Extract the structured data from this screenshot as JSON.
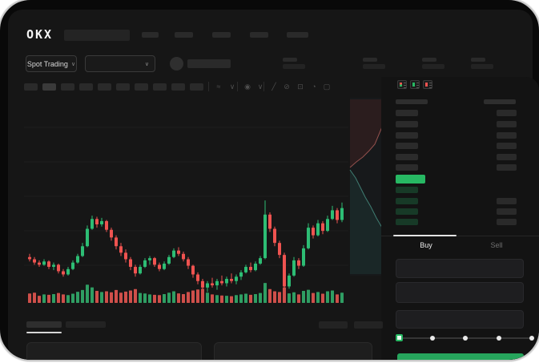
{
  "brand": "OKX",
  "nav": {
    "market_selector": {
      "label": "Spot Trading",
      "chevron": "∨"
    },
    "pair_selector": {
      "value": "",
      "chevron": "∨"
    }
  },
  "toolbar": {
    "icons": [
      {
        "name": "chart-type-icon",
        "glyph": "≈"
      },
      {
        "name": "chevron-down-icon",
        "glyph": "∨"
      },
      {
        "name": "indicators-icon",
        "glyph": "◉"
      },
      {
        "name": "chevron-down-icon",
        "glyph": "∨"
      },
      {
        "name": "line-tool-icon",
        "glyph": "╱"
      },
      {
        "name": "compare-icon",
        "glyph": "⊘"
      },
      {
        "name": "camera-icon",
        "glyph": "⊡"
      },
      {
        "name": "history-icon",
        "glyph": "◔"
      },
      {
        "name": "fullscreen-icon",
        "glyph": "▢"
      }
    ]
  },
  "chart_data": {
    "type": "candlestick",
    "title": "",
    "xlabel": "",
    "ylabel": "",
    "axis_labels_visible": false,
    "grid": true,
    "price_scale": {
      "min": 0,
      "max": 100
    },
    "colors": {
      "up": "#2dbd74",
      "down": "#ef5350",
      "vol_up": "#2f9e63",
      "vol_down": "#cf4f4a",
      "grid": "#1e1e1e"
    },
    "candles_ohlc": [
      [
        45,
        48,
        41,
        43
      ],
      [
        43,
        45,
        38,
        40
      ],
      [
        40,
        42,
        36,
        38
      ],
      [
        38,
        43,
        37,
        41
      ],
      [
        41,
        42,
        34,
        36
      ],
      [
        36,
        40,
        33,
        38
      ],
      [
        38,
        39,
        30,
        32
      ],
      [
        32,
        34,
        27,
        29
      ],
      [
        29,
        36,
        28,
        34
      ],
      [
        34,
        42,
        33,
        40
      ],
      [
        40,
        48,
        39,
        46
      ],
      [
        46,
        58,
        45,
        55
      ],
      [
        55,
        74,
        54,
        71
      ],
      [
        71,
        83,
        70,
        80
      ],
      [
        80,
        82,
        72,
        75
      ],
      [
        75,
        81,
        73,
        78
      ],
      [
        78,
        79,
        68,
        70
      ],
      [
        70,
        72,
        60,
        63
      ],
      [
        63,
        65,
        52,
        55
      ],
      [
        55,
        58,
        46,
        49
      ],
      [
        49,
        52,
        40,
        43
      ],
      [
        43,
        45,
        33,
        36
      ],
      [
        36,
        38,
        27,
        30
      ],
      [
        30,
        38,
        29,
        36
      ],
      [
        36,
        44,
        35,
        42
      ],
      [
        42,
        46,
        38,
        44
      ],
      [
        44,
        45,
        36,
        38
      ],
      [
        38,
        40,
        32,
        34
      ],
      [
        34,
        41,
        33,
        39
      ],
      [
        39,
        47,
        38,
        45
      ],
      [
        45,
        53,
        44,
        51
      ],
      [
        51,
        54,
        46,
        48
      ],
      [
        48,
        50,
        41,
        43
      ],
      [
        43,
        45,
        34,
        37
      ],
      [
        37,
        38,
        26,
        29
      ],
      [
        29,
        31,
        20,
        23
      ],
      [
        23,
        25,
        14,
        17
      ],
      [
        17,
        23,
        13,
        21
      ],
      [
        21,
        26,
        17,
        19
      ],
      [
        19,
        25,
        15,
        23
      ],
      [
        23,
        28,
        19,
        21
      ],
      [
        21,
        27,
        18,
        25
      ],
      [
        25,
        30,
        21,
        23
      ],
      [
        23,
        29,
        20,
        27
      ],
      [
        27,
        33,
        24,
        31
      ],
      [
        31,
        38,
        30,
        36
      ],
      [
        36,
        40,
        31,
        33
      ],
      [
        33,
        41,
        32,
        39
      ],
      [
        39,
        46,
        38,
        44
      ],
      [
        44,
        97,
        43,
        84
      ],
      [
        84,
        86,
        68,
        71
      ],
      [
        71,
        73,
        55,
        58
      ],
      [
        58,
        60,
        44,
        47
      ],
      [
        47,
        49,
        13,
        18
      ],
      [
        18,
        30,
        16,
        28
      ],
      [
        28,
        45,
        27,
        42
      ],
      [
        42,
        44,
        34,
        37
      ],
      [
        37,
        56,
        36,
        53
      ],
      [
        53,
        76,
        52,
        72
      ],
      [
        72,
        74,
        62,
        65
      ],
      [
        65,
        79,
        64,
        76
      ],
      [
        76,
        78,
        66,
        69
      ],
      [
        69,
        83,
        68,
        80
      ],
      [
        80,
        92,
        79,
        88
      ],
      [
        88,
        90,
        76,
        79
      ],
      [
        79,
        95,
        77,
        90
      ]
    ],
    "volume": [
      35,
      40,
      22,
      30,
      28,
      32,
      38,
      30,
      26,
      34,
      45,
      55,
      85,
      70,
      50,
      44,
      48,
      42,
      55,
      40,
      46,
      52,
      60,
      38,
      35,
      30,
      28,
      26,
      32,
      40,
      48,
      36,
      32,
      44,
      52,
      58,
      62,
      40,
      30,
      26,
      24,
      22,
      20,
      26,
      30,
      34,
      28,
      32,
      38,
      95,
      60,
      48,
      44,
      70,
      36,
      42,
      30,
      50,
      56,
      38,
      44,
      34,
      48,
      52,
      30,
      40
    ],
    "depth_chart": {
      "type": "area",
      "orientation": "vertical",
      "ask_color": "#93504d",
      "ask_fill": "rgba(190,64,60,0.12)",
      "bid_color": "#3f7d72",
      "bid_fill": "rgba(46,150,130,0.12)",
      "ask_line": [
        [
          50,
          2
        ],
        [
          47,
          12
        ],
        [
          45,
          22
        ],
        [
          41,
          34
        ],
        [
          36,
          46
        ],
        [
          31,
          58
        ],
        [
          24,
          66
        ],
        [
          16,
          74
        ],
        [
          8,
          80
        ],
        [
          0,
          87
        ]
      ],
      "bid_line": [
        [
          0,
          90
        ],
        [
          7,
          100
        ],
        [
          13,
          112
        ],
        [
          19,
          124
        ],
        [
          26,
          136
        ],
        [
          33,
          150
        ],
        [
          40,
          162
        ],
        [
          45,
          172
        ],
        [
          47,
          178
        ],
        [
          47,
          220
        ]
      ]
    }
  },
  "order_book": {
    "view_icons": [
      {
        "name": "book-all-icon"
      },
      {
        "name": "book-bids-icon"
      },
      {
        "name": "book-asks-icon"
      }
    ],
    "asks": [
      {
        "left": true,
        "right": true
      },
      {
        "left": true,
        "right": true
      },
      {
        "left": true,
        "right": true
      },
      {
        "left": true,
        "right": true
      },
      {
        "left": true,
        "right": true
      },
      {
        "left": true,
        "right": true
      }
    ],
    "last_price": {
      "highlight_color": "#27b863"
    },
    "bids": [
      {
        "left": true,
        "right": false
      },
      {
        "left": true,
        "right": true
      },
      {
        "left": true,
        "right": true
      },
      {
        "left": true,
        "right": true
      }
    ]
  },
  "trade_panel": {
    "tabs": [
      {
        "label": "Buy",
        "active": true
      },
      {
        "label": "Sell",
        "active": false
      }
    ],
    "fields": [
      {
        "value": ""
      },
      {
        "value": ""
      },
      {
        "value": ""
      }
    ],
    "slider": {
      "steps": 5,
      "active_index": 0,
      "accent": "#27b863"
    },
    "buy_button": {
      "label": "",
      "color": "#26a55c"
    }
  },
  "colors": {
    "accent_green": "#27b863",
    "candle_up": "#2dbd74",
    "candle_down": "#ef5350",
    "app_bg": "#161616"
  }
}
